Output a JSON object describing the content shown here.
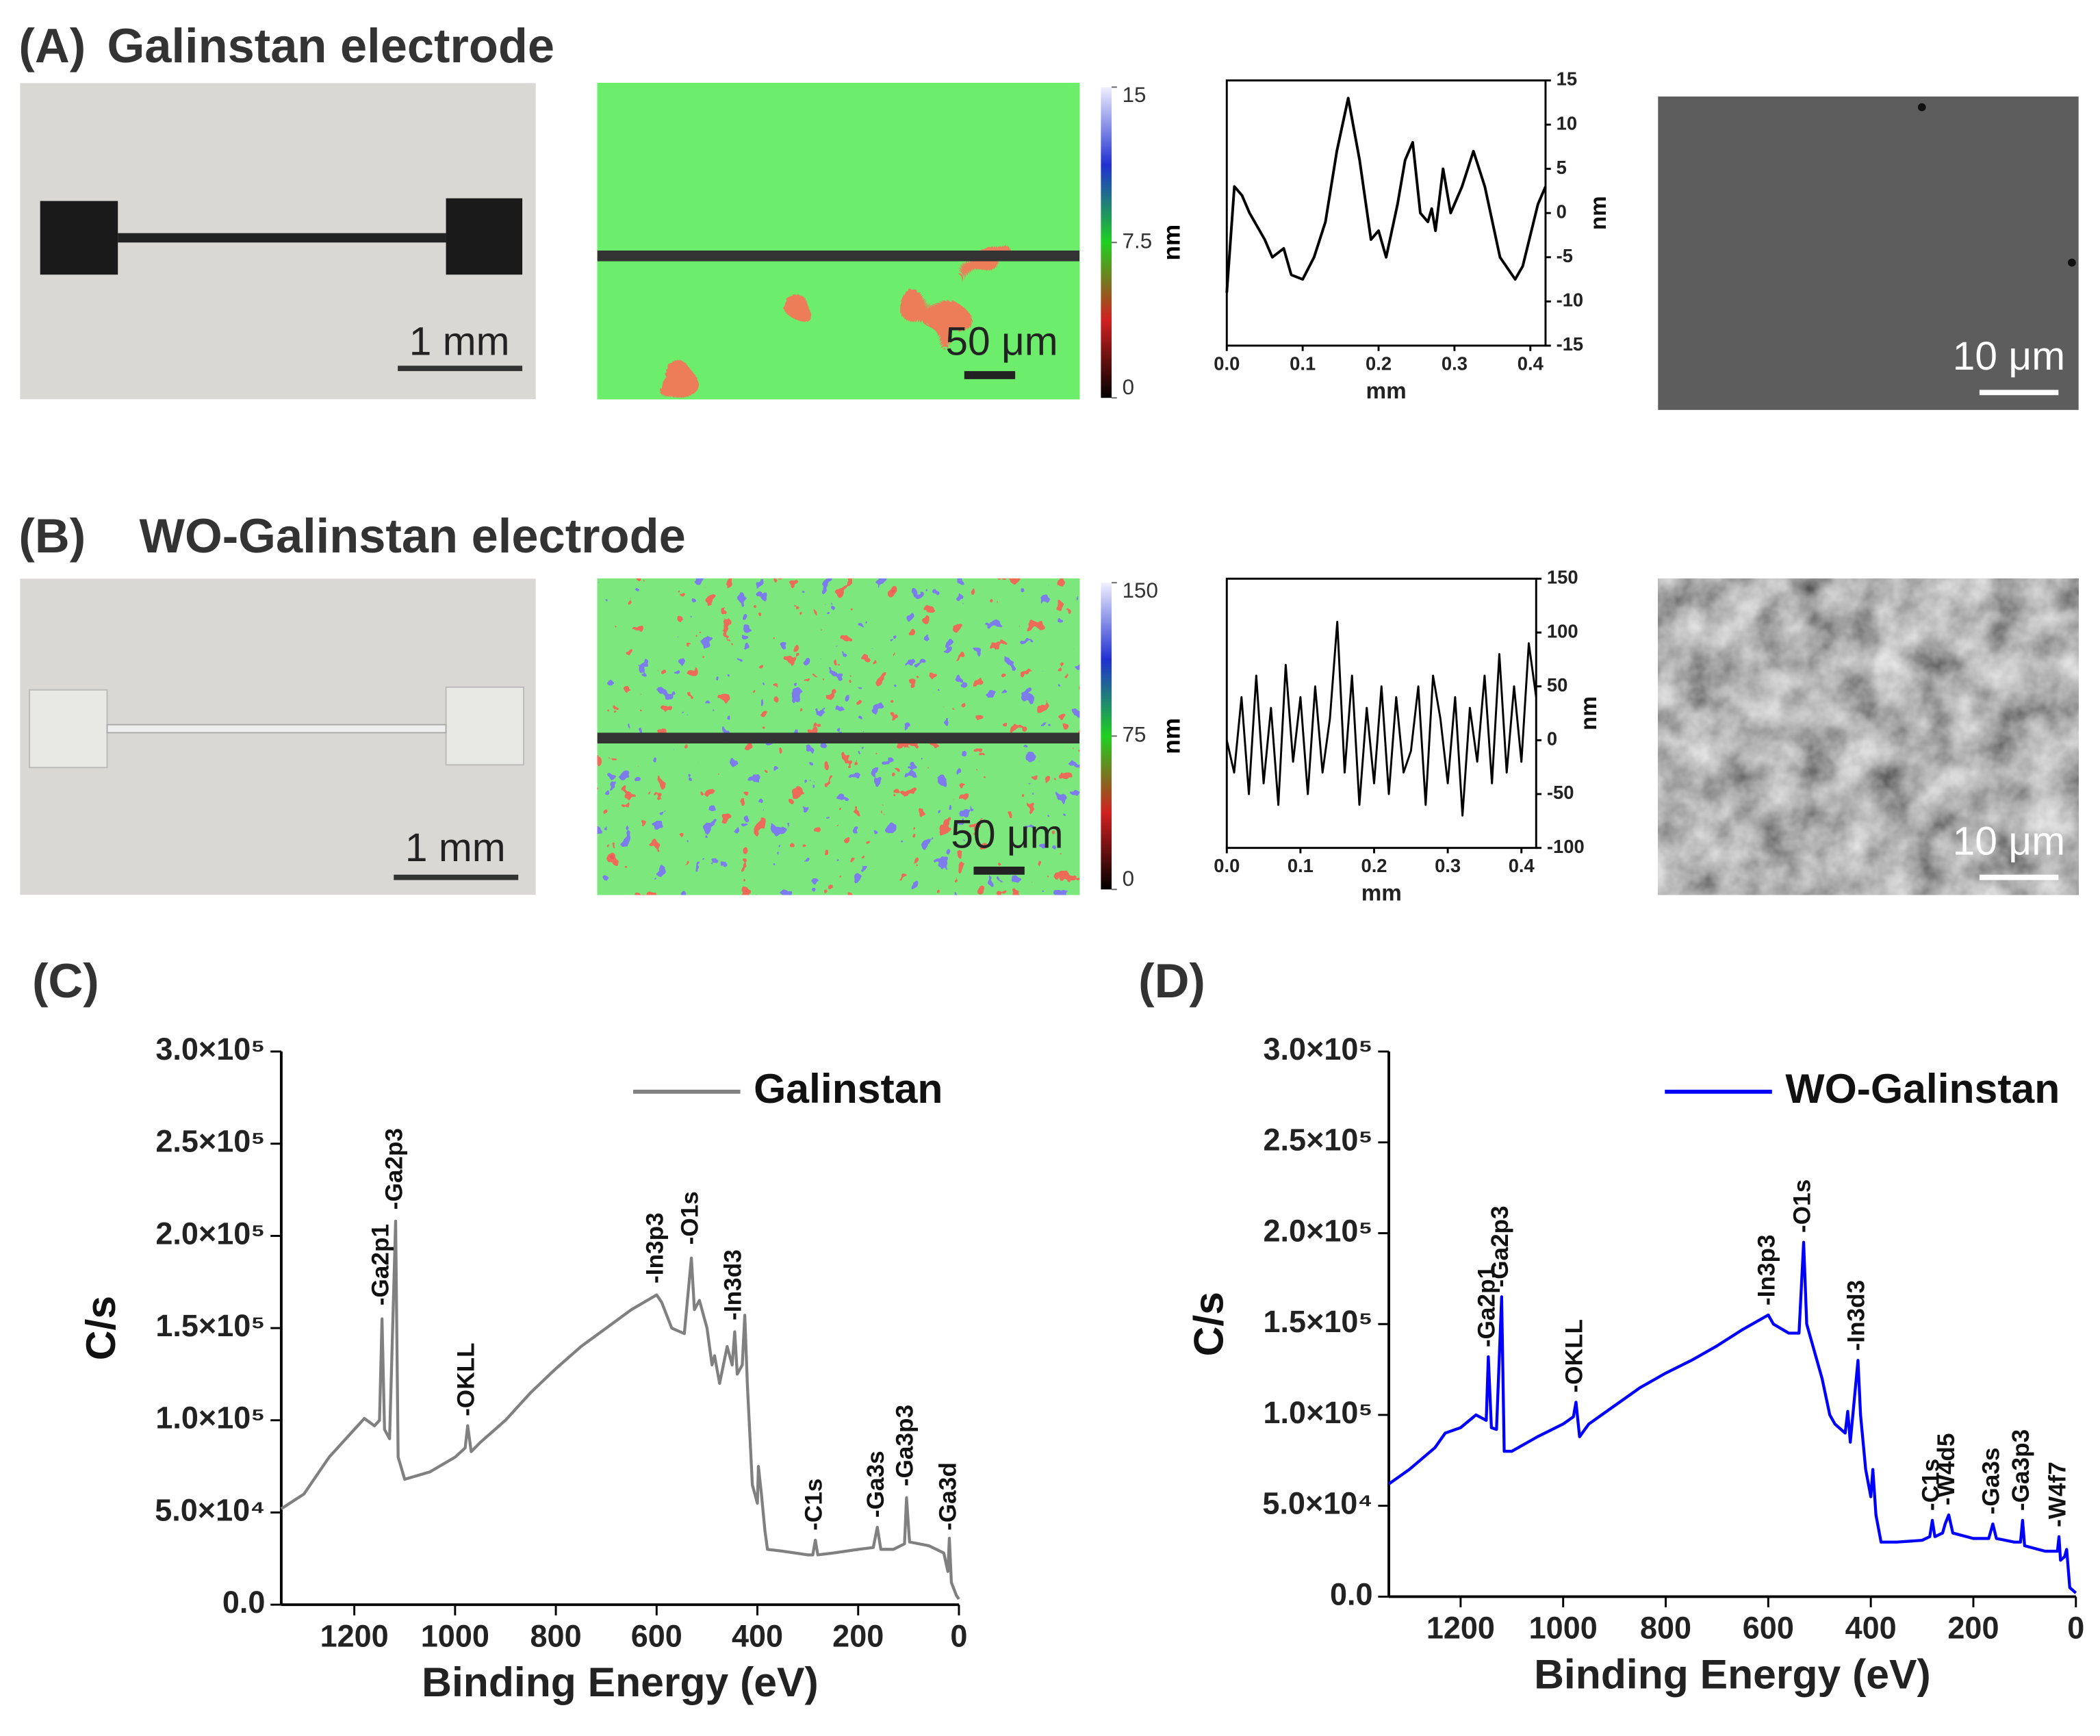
{
  "panels": [
    {
      "label": "(A)",
      "title": "Galinstan electrode",
      "scale_bars": [
        "1 mm",
        "50 μm",
        "10 μm"
      ],
      "colorbar": {
        "label": "nm",
        "lim": [
          0,
          15
        ],
        "ticks": [
          0,
          7.5,
          15
        ]
      }
    },
    {
      "label": "(B)",
      "title": "WO-Galinstan electrode",
      "scale_bars": [
        "1 mm",
        "50 μm",
        "10 μm"
      ],
      "colorbar": {
        "label": "nm",
        "lim": [
          0,
          150
        ],
        "ticks": [
          0,
          75,
          150
        ]
      }
    },
    {
      "label": "(C)"
    },
    {
      "label": "(D)"
    }
  ],
  "chart_data": [
    {
      "type": "line",
      "xlabel": "mm",
      "ylabel": "nm",
      "yaxis_side": "right",
      "x": [
        0,
        0.01,
        0.02,
        0.03,
        0.05,
        0.06,
        0.075,
        0.085,
        0.1,
        0.115,
        0.13,
        0.145,
        0.16,
        0.175,
        0.19,
        0.2,
        0.21,
        0.225,
        0.235,
        0.245,
        0.255,
        0.265,
        0.27,
        0.275,
        0.285,
        0.295,
        0.31,
        0.325,
        0.34,
        0.36,
        0.38,
        0.39,
        0.41,
        0.42
      ],
      "series": [
        {
          "color": "#000000",
          "values": [
            -9,
            3,
            2,
            0,
            -3,
            -5,
            -4,
            -7,
            -7.5,
            -5,
            -1,
            7,
            13,
            6,
            -3,
            -2,
            -5,
            1,
            6,
            8,
            0,
            -1,
            0.5,
            -2,
            5,
            0,
            3,
            7,
            3,
            -5,
            -7.5,
            -6,
            1,
            3
          ]
        }
      ],
      "xlim": [
        0,
        0.42
      ],
      "ylim": [
        -15,
        15
      ],
      "xticks": [
        {
          "value": 0,
          "label": "0.0"
        },
        0.1,
        0.2,
        0.3,
        0.4
      ],
      "yticks": [
        -15,
        -10,
        -5,
        0,
        5,
        10,
        15
      ]
    },
    {
      "type": "line",
      "xlabel": "mm",
      "ylabel": "nm",
      "yaxis_side": "right",
      "x": [
        0,
        0.01,
        0.02,
        0.03,
        0.04,
        0.05,
        0.06,
        0.07,
        0.08,
        0.09,
        0.1,
        0.11,
        0.12,
        0.13,
        0.14,
        0.15,
        0.16,
        0.17,
        0.18,
        0.19,
        0.2,
        0.21,
        0.22,
        0.23,
        0.24,
        0.25,
        0.26,
        0.27,
        0.28,
        0.29,
        0.3,
        0.31,
        0.32,
        0.33,
        0.34,
        0.35,
        0.36,
        0.37,
        0.38,
        0.39,
        0.4,
        0.41,
        0.42
      ],
      "series": [
        {
          "color": "#000000",
          "values": [
            0,
            -30,
            40,
            -50,
            60,
            -40,
            30,
            -60,
            70,
            -20,
            40,
            -50,
            50,
            -30,
            20,
            110,
            -30,
            60,
            -60,
            30,
            -40,
            50,
            -50,
            40,
            -30,
            -10,
            50,
            -60,
            60,
            20,
            -40,
            40,
            -70,
            30,
            -20,
            60,
            -40,
            80,
            -30,
            50,
            -20,
            90,
            40
          ]
        }
      ],
      "xlim": [
        0,
        0.42
      ],
      "ylim": [
        -100,
        150
      ],
      "xticks": [
        {
          "value": 0,
          "label": "0.0"
        },
        0.1,
        0.2,
        0.3,
        0.4
      ],
      "yticks": [
        -100,
        -50,
        0,
        50,
        100,
        150
      ]
    },
    {
      "type": "line",
      "xlabel": "Binding Energy (eV)",
      "ylabel": "C/s",
      "legend": "upper right",
      "x": [
        1345,
        1300,
        1250,
        1200,
        1180,
        1160,
        1150,
        1145,
        1140,
        1130,
        1118,
        1113,
        1100,
        1050,
        1000,
        980,
        975,
        968,
        950,
        900,
        850,
        800,
        750,
        700,
        650,
        600,
        590,
        570,
        545,
        531,
        525,
        515,
        500,
        490,
        485,
        475,
        460,
        450,
        445,
        440,
        430,
        425,
        420,
        410,
        400,
        398,
        392,
        385,
        380,
        350,
        300,
        290,
        285,
        280,
        250,
        200,
        170,
        162,
        155,
        130,
        108,
        104,
        98,
        60,
        30,
        22,
        19,
        15,
        5,
        0
      ],
      "series": [
        {
          "name": "Galinstan",
          "color": "#808080",
          "values": [
            52000,
            60000,
            80000,
            95000,
            101000,
            97000,
            100000,
            155000,
            95000,
            90000,
            208000,
            80000,
            68000,
            72000,
            80000,
            85000,
            97000,
            83000,
            88000,
            100000,
            115000,
            128000,
            140000,
            150000,
            160000,
            168000,
            164000,
            150000,
            147000,
            188000,
            160000,
            165000,
            150000,
            130000,
            135000,
            120000,
            140000,
            130000,
            148000,
            125000,
            130000,
            157000,
            120000,
            65000,
            55000,
            75000,
            60000,
            40000,
            30000,
            29000,
            27000,
            27000,
            35000,
            27000,
            28000,
            30000,
            31000,
            42000,
            30000,
            30000,
            33000,
            58000,
            34000,
            32000,
            28000,
            18000,
            36000,
            12000,
            5000,
            3000
          ]
        }
      ],
      "xlim": [
        1345,
        0
      ],
      "ylim": [
        0,
        300000
      ],
      "xticks": [
        1200,
        1000,
        800,
        600,
        400,
        200,
        0
      ],
      "yticks": [
        {
          "value": 0,
          "label": "0.0"
        },
        {
          "value": 50000,
          "label": "5.0×10⁴"
        },
        {
          "value": 100000,
          "label": "1.0×10⁵"
        },
        {
          "value": 150000,
          "label": "1.5×10⁵"
        },
        {
          "value": 200000,
          "label": "2.0×10⁵"
        },
        {
          "value": 250000,
          "label": "2.5×10⁵"
        },
        {
          "value": 300000,
          "label": "3.0×10⁵"
        }
      ],
      "annotations": [
        {
          "text": "-Ga2p1",
          "x": 1145,
          "y": 160000
        },
        {
          "text": "-Ga2p3",
          "x": 1118,
          "y": 212000
        },
        {
          "text": "-OKLL",
          "x": 975,
          "y": 100000
        },
        {
          "text": "-In3p3",
          "x": 600,
          "y": 172000
        },
        {
          "text": "-O1s",
          "x": 531,
          "y": 193000
        },
        {
          "text": "-In3d3",
          "x": 445,
          "y": 152000
        },
        {
          "text": "-C1s",
          "x": 285,
          "y": 38000
        },
        {
          "text": "-Ga3s",
          "x": 162,
          "y": 45000
        },
        {
          "text": "-Ga3p3",
          "x": 104,
          "y": 62000
        },
        {
          "text": "-Ga3d",
          "x": 19,
          "y": 38000
        }
      ]
    },
    {
      "type": "line",
      "xlabel": "Binding Energy (eV)",
      "ylabel": "C/s",
      "legend": "upper right",
      "x": [
        1340,
        1300,
        1250,
        1230,
        1200,
        1170,
        1150,
        1146,
        1140,
        1130,
        1120,
        1115,
        1100,
        1050,
        1000,
        980,
        975,
        968,
        950,
        900,
        850,
        800,
        750,
        700,
        650,
        600,
        590,
        560,
        540,
        531,
        525,
        515,
        505,
        495,
        480,
        470,
        450,
        445,
        440,
        425,
        420,
        410,
        400,
        396,
        390,
        380,
        350,
        300,
        285,
        280,
        275,
        260,
        255,
        248,
        240,
        200,
        170,
        162,
        155,
        120,
        108,
        104,
        100,
        60,
        36,
        33,
        30,
        22,
        18,
        12,
        0
      ],
      "series": [
        {
          "name": "WO-Galinstan",
          "color": "#0000ff",
          "values": [
            62000,
            70000,
            82000,
            90000,
            93000,
            100000,
            97000,
            132000,
            93000,
            92000,
            165000,
            80000,
            80000,
            88000,
            95000,
            99000,
            107000,
            88000,
            95000,
            105000,
            115000,
            123000,
            130000,
            138000,
            147000,
            155000,
            150000,
            145000,
            145000,
            195000,
            150000,
            140000,
            130000,
            120000,
            100000,
            95000,
            90000,
            102000,
            85000,
            130000,
            100000,
            70000,
            55000,
            70000,
            45000,
            30000,
            30000,
            31000,
            33000,
            42000,
            33000,
            35000,
            40000,
            45000,
            35000,
            32000,
            32000,
            40000,
            32000,
            30000,
            30000,
            42000,
            28000,
            25000,
            25000,
            33000,
            20000,
            22000,
            26000,
            5000,
            2000
          ]
        }
      ],
      "xlim": [
        1340,
        0
      ],
      "ylim": [
        0,
        300000
      ],
      "xticks": [
        1200,
        1000,
        800,
        600,
        400,
        200,
        0
      ],
      "yticks": [
        {
          "value": 0,
          "label": "0.0"
        },
        {
          "value": 50000,
          "label": "5.0×10⁴"
        },
        {
          "value": 100000,
          "label": "1.0×10⁵"
        },
        {
          "value": 150000,
          "label": "1.5×10⁵"
        },
        {
          "value": 200000,
          "label": "2.0×10⁵"
        },
        {
          "value": 250000,
          "label": "2.5×10⁵"
        },
        {
          "value": 300000,
          "label": "3.0×10⁵"
        }
      ],
      "annotations": [
        {
          "text": "-Ga2p1",
          "x": 1146,
          "y": 135000
        },
        {
          "text": "-Ga2p3",
          "x": 1120,
          "y": 168000
        },
        {
          "text": "-OKLL",
          "x": 975,
          "y": 110000
        },
        {
          "text": "-In3p3",
          "x": 600,
          "y": 158000
        },
        {
          "text": "-O1s",
          "x": 531,
          "y": 198000
        },
        {
          "text": "-In3d3",
          "x": 425,
          "y": 133000
        },
        {
          "text": "-C1s",
          "x": 280,
          "y": 45000
        },
        {
          "text": "-W4d5",
          "x": 250,
          "y": 48000
        },
        {
          "text": "-Ga3s",
          "x": 162,
          "y": 43000
        },
        {
          "text": "-Ga3p3",
          "x": 104,
          "y": 45000
        },
        {
          "text": "-W4f7",
          "x": 33,
          "y": 36000
        }
      ]
    }
  ]
}
